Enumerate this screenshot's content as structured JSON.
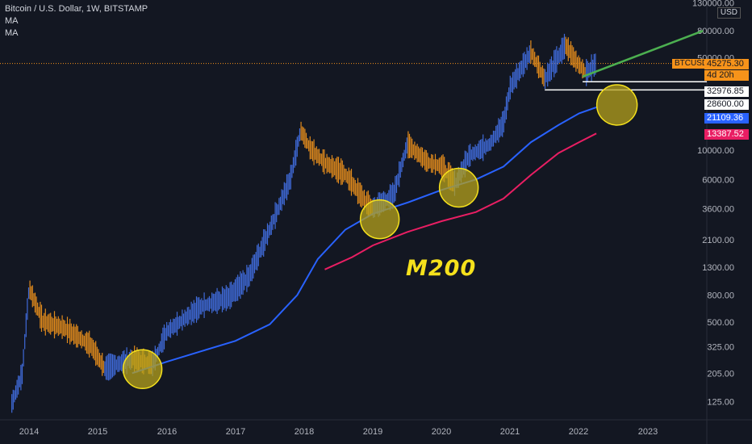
{
  "legend": {
    "title": "Bitcoin / U.S. Dollar, 1W, BITSTAMP",
    "ma1": "MA",
    "ma2": "MA"
  },
  "axis": {
    "currency": "USD",
    "y_ticks": [
      "130000.00",
      "80000.00",
      "50000.00",
      "32976.85",
      "28600.00",
      "21109.36",
      "13387.52",
      "10000.00",
      "6000.00",
      "3600.00",
      "2100.00",
      "1300.00",
      "800.00",
      "500.00",
      "325.00",
      "205.00",
      "125.00"
    ],
    "x_ticks": [
      "2014",
      "2015",
      "2016",
      "2017",
      "2018",
      "2019",
      "2020",
      "2021",
      "2022",
      "2023"
    ]
  },
  "price_tags": {
    "symbol": "BTCUSD",
    "last_price": "45275.30",
    "countdown": "4d 20h",
    "level1": "32976.85",
    "level2": "28600.00",
    "ma_blue": "21109.36",
    "ma_red": "13387.52"
  },
  "annotation": {
    "text": "M200"
  },
  "colors": {
    "background": "#131722",
    "up_candle": "#3f6ad8",
    "down_candle": "#e08a1c",
    "ma_blue": "#2962ff",
    "ma_red": "#e91e63",
    "trend_green": "#4caf50",
    "circle_fill": "#b5a21c",
    "circle_stroke": "#f5e11c"
  },
  "chart_data": {
    "type": "line",
    "scale": "log",
    "ylim": [
      100,
      130000
    ],
    "xlim": [
      2013.7,
      2023.8
    ],
    "series": [
      {
        "role": "BTCUSD price (approx)",
        "x": [
          2013.75,
          2013.9,
          2014.0,
          2014.2,
          2014.5,
          2014.9,
          2015.1,
          2015.5,
          2015.8,
          2016.0,
          2016.5,
          2016.9,
          2017.2,
          2017.5,
          2017.8,
          2017.95,
          2018.1,
          2018.3,
          2018.6,
          2018.9,
          2019.0,
          2019.3,
          2019.5,
          2019.8,
          2020.0,
          2020.2,
          2020.4,
          2020.7,
          2020.9,
          2021.0,
          2021.3,
          2021.5,
          2021.8,
          2021.95,
          2022.1,
          2022.25
        ],
        "y": [
          120,
          200,
          900,
          500,
          450,
          330,
          220,
          260,
          240,
          420,
          650,
          760,
          1100,
          2500,
          6000,
          14000,
          10000,
          8000,
          6500,
          4000,
          3600,
          4500,
          11000,
          8000,
          7500,
          5500,
          9000,
          11000,
          16000,
          30000,
          55000,
          34000,
          62000,
          47000,
          38000,
          45000
        ]
      },
      {
        "role": "moving average (blue)",
        "x": [
          2015.5,
          2016.0,
          2016.5,
          2017.0,
          2017.5,
          2017.9,
          2018.2,
          2018.6,
          2019.0,
          2019.5,
          2020.0,
          2020.5,
          2020.9,
          2021.3,
          2021.7,
          2022.0,
          2022.25
        ],
        "y": [
          205,
          250,
          300,
          360,
          480,
          800,
          1500,
          2500,
          3300,
          4000,
          5000,
          6000,
          7500,
          11500,
          15500,
          19000,
          21109
        ]
      },
      {
        "role": "moving average (red)",
        "x": [
          2018.3,
          2018.7,
          2019.0,
          2019.5,
          2020.0,
          2020.5,
          2020.9,
          2021.3,
          2021.7,
          2022.0,
          2022.25
        ],
        "y": [
          1250,
          1550,
          1900,
          2400,
          2900,
          3400,
          4300,
          6500,
          9500,
          11500,
          13387
        ]
      }
    ],
    "levels": [
      32976.85,
      28600.0
    ],
    "trendline": {
      "x": [
        2022.05,
        2023.8
      ],
      "y": [
        36000,
        80000
      ]
    },
    "highlight_circles": [
      {
        "x": 2015.65,
        "y": 220
      },
      {
        "x": 2019.1,
        "y": 3000
      },
      {
        "x": 2020.25,
        "y": 5200
      },
      {
        "x": 2022.55,
        "y": 22000
      }
    ]
  }
}
